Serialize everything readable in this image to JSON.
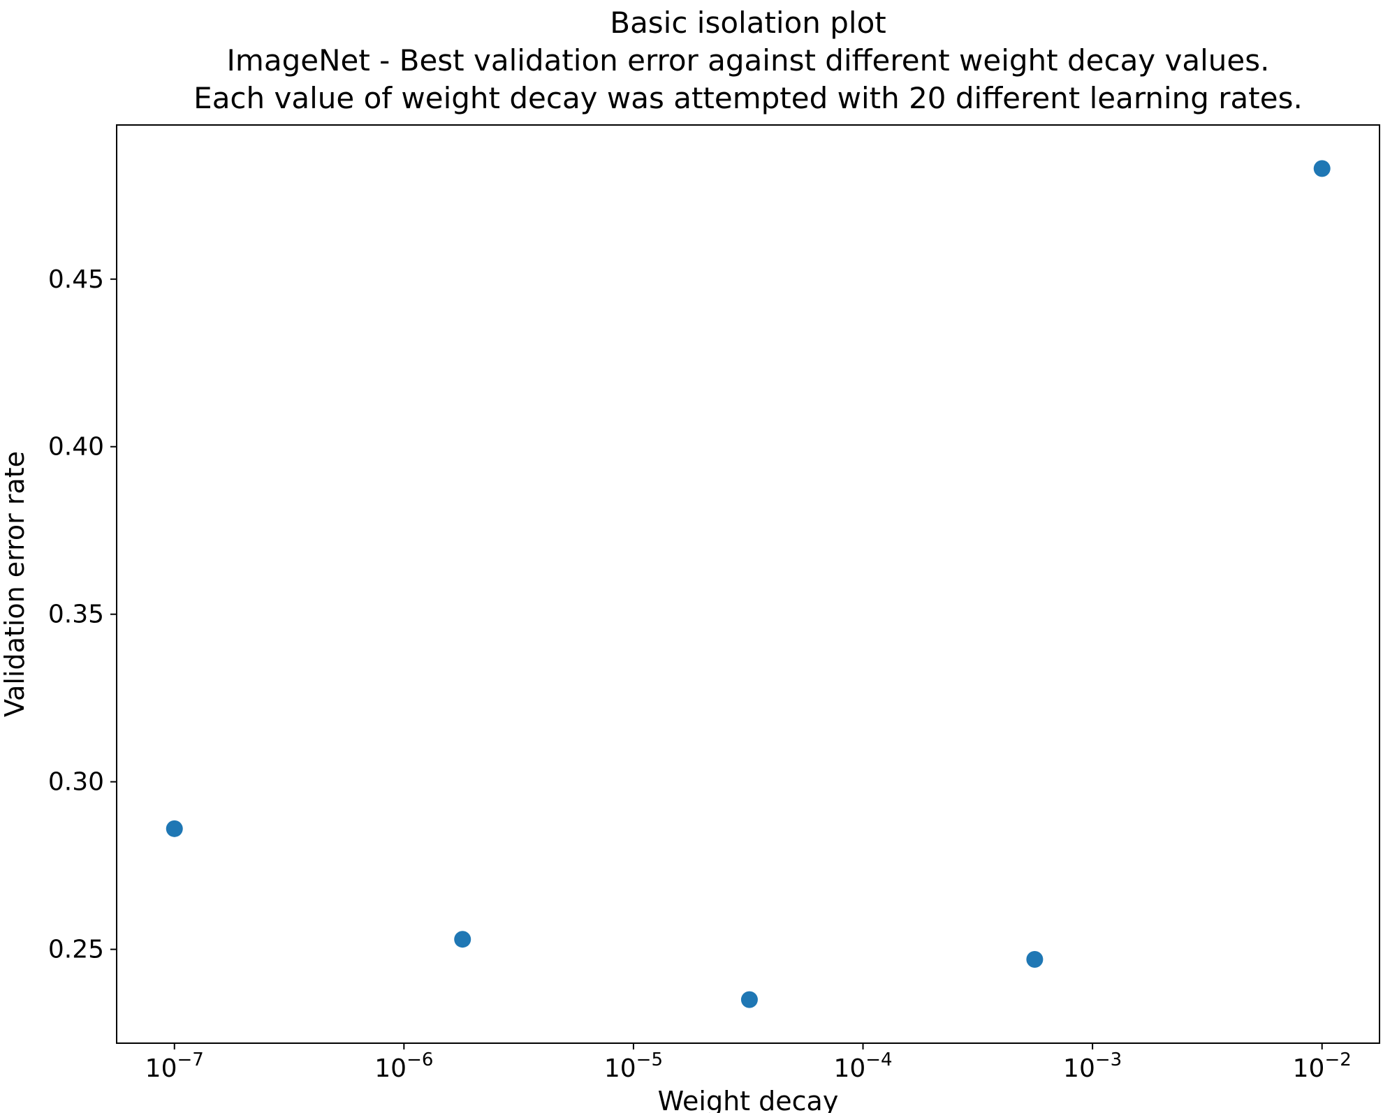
{
  "chart_data": {
    "type": "scatter",
    "title": "Basic isolation plot\nImageNet - Best validation error against different weight decay values.\nEach value of weight decay was attempted with 20 different learning rates.",
    "title_lines": [
      "Basic isolation plot",
      "ImageNet - Best validation error against different weight decay values.",
      "Each value of weight decay was attempted with 20 different learning rates."
    ],
    "xlabel": "Weight decay",
    "ylabel": "Validation error rate",
    "x_scale": "log",
    "y_scale": "linear",
    "x": [
      1e-07,
      1.8e-06,
      3.2e-05,
      0.00056,
      0.01
    ],
    "y": [
      0.286,
      0.253,
      0.235,
      0.247,
      0.483
    ],
    "xlim": [
      5.6e-08,
      0.0178
    ],
    "ylim": [
      0.222,
      0.496
    ],
    "x_tick_exponents": [
      -7,
      -6,
      -5,
      -4,
      -3,
      -2
    ],
    "y_ticks": [
      0.25,
      0.3,
      0.35,
      0.4,
      0.45
    ],
    "grid": false,
    "legend": "none",
    "marker_color": "#1f77b4",
    "axis_color": "#000000",
    "text_color": "#000000"
  }
}
